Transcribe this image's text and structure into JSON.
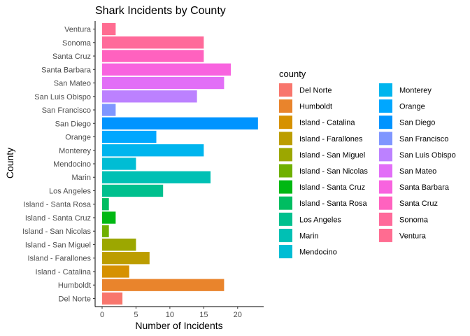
{
  "chart_data": {
    "type": "bar",
    "orientation": "horizontal",
    "title": "Shark Incidents by County",
    "xlabel": "Number of Incidents",
    "ylabel": "County",
    "xlim": [
      0,
      23.5
    ],
    "xticks": [
      0,
      5,
      10,
      15,
      20
    ],
    "grid": false,
    "legend_title": "county",
    "legend_position": "right",
    "categories": [
      "Del Norte",
      "Humboldt",
      "Island - Catalina",
      "Island - Farallones",
      "Island - San Miguel",
      "Island - San Nicolas",
      "Island - Santa Cruz",
      "Island - Santa Rosa",
      "Los Angeles",
      "Marin",
      "Mendocino",
      "Monterey",
      "Orange",
      "San Diego",
      "San Francisco",
      "San Luis Obispo",
      "San Mateo",
      "Santa Barbara",
      "Santa Cruz",
      "Sonoma",
      "Ventura"
    ],
    "values": [
      3,
      18,
      4,
      7,
      5,
      1,
      2,
      1,
      9,
      16,
      5,
      15,
      8,
      23,
      2,
      14,
      18,
      19,
      15,
      15,
      2
    ],
    "colors": [
      "#F8766D",
      "#E9842C",
      "#D69100",
      "#BC9D00",
      "#9CA700",
      "#6FB000",
      "#00B813",
      "#00BD61",
      "#00C08E",
      "#00C0B4",
      "#00BDD4",
      "#00B5EE",
      "#00A7FF",
      "#0094FF",
      "#7F96FF",
      "#BC81FF",
      "#E26EF7",
      "#F863DF",
      "#FF62BF",
      "#FF6A9A",
      "#FF6C91"
    ]
  }
}
